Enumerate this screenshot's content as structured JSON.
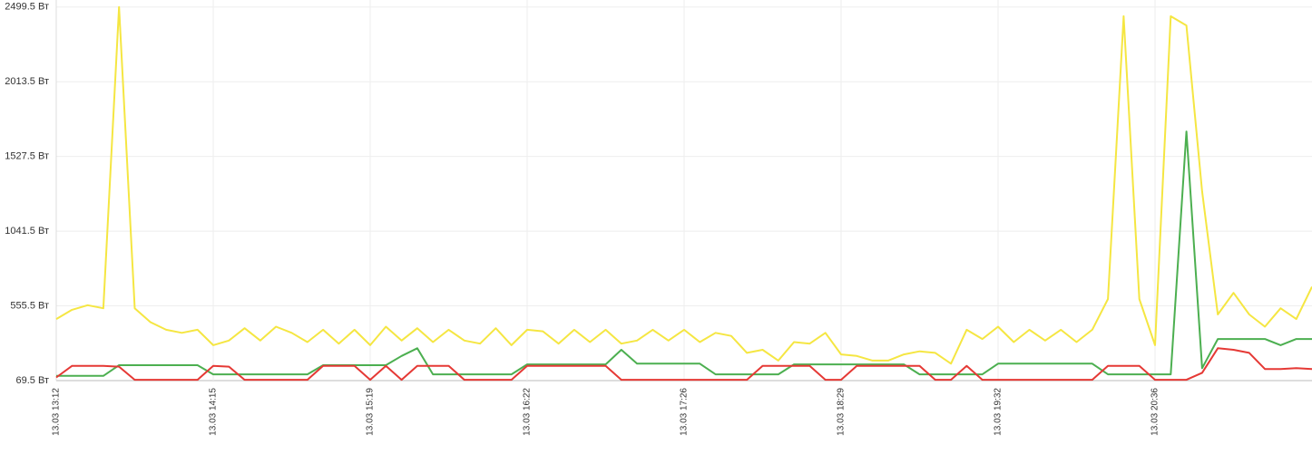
{
  "chart_data": {
    "type": "line",
    "categories": [
      "13.03 13:12",
      null,
      null,
      null,
      null,
      null,
      null,
      null,
      null,
      null,
      "13.03 14:15",
      null,
      null,
      null,
      null,
      null,
      null,
      null,
      null,
      null,
      "13.03 15:19",
      null,
      null,
      null,
      null,
      null,
      null,
      null,
      null,
      null,
      "13.03 16:22",
      null,
      null,
      null,
      null,
      null,
      null,
      null,
      null,
      null,
      "13.03 17:26",
      null,
      null,
      null,
      null,
      null,
      null,
      null,
      null,
      null,
      "13.03 18:29",
      null,
      null,
      null,
      null,
      null,
      null,
      null,
      null,
      null,
      "13.03 19:32",
      null,
      null,
      null,
      null,
      null,
      null,
      null,
      null,
      null,
      "13.03 20:36",
      null,
      null,
      null,
      null,
      null,
      null,
      null,
      null,
      null,
      null
    ],
    "series": [
      {
        "color": "#f5e642",
        "values": [
          470,
          530,
          560,
          540,
          2500,
          540,
          450,
          400,
          380,
          400,
          300,
          330,
          410,
          330,
          420,
          380,
          320,
          400,
          310,
          400,
          300,
          420,
          330,
          410,
          320,
          400,
          330,
          310,
          410,
          300,
          400,
          390,
          310,
          400,
          320,
          400,
          310,
          330,
          400,
          330,
          400,
          320,
          380,
          360,
          250,
          270,
          200,
          320,
          310,
          380,
          240,
          230,
          200,
          200,
          240,
          260,
          250,
          180,
          400,
          340,
          420,
          320,
          400,
          330,
          400,
          320,
          400,
          600,
          2440,
          600,
          300,
          2440,
          2380,
          1300,
          500,
          640,
          500,
          420,
          540,
          470,
          680
        ]
      },
      {
        "color": "#4caf50",
        "values": [
          100,
          100,
          100,
          100,
          170,
          170,
          170,
          170,
          170,
          170,
          110,
          110,
          110,
          110,
          110,
          110,
          110,
          170,
          170,
          170,
          170,
          170,
          230,
          280,
          110,
          110,
          110,
          110,
          110,
          110,
          175,
          175,
          175,
          175,
          175,
          175,
          270,
          180,
          180,
          180,
          180,
          180,
          110,
          110,
          110,
          110,
          110,
          175,
          175,
          175,
          175,
          175,
          175,
          175,
          175,
          110,
          110,
          110,
          110,
          110,
          180,
          180,
          180,
          180,
          180,
          180,
          180,
          110,
          110,
          110,
          110,
          110,
          1690,
          150,
          340,
          340,
          340,
          340,
          300,
          340,
          340
        ]
      },
      {
        "color": "#e53935",
        "values": [
          90,
          165,
          165,
          165,
          160,
          75,
          75,
          75,
          75,
          75,
          165,
          160,
          75,
          75,
          75,
          75,
          75,
          165,
          165,
          165,
          75,
          165,
          75,
          165,
          165,
          165,
          75,
          75,
          75,
          75,
          165,
          165,
          165,
          165,
          165,
          165,
          75,
          75,
          75,
          75,
          75,
          75,
          75,
          75,
          75,
          165,
          165,
          165,
          165,
          75,
          75,
          165,
          165,
          165,
          165,
          165,
          75,
          75,
          165,
          75,
          75,
          75,
          75,
          75,
          75,
          75,
          75,
          165,
          165,
          165,
          75,
          75,
          75,
          120,
          280,
          270,
          250,
          145,
          145,
          150,
          145
        ]
      }
    ],
    "ylim": [
      69.5,
      2545.5
    ],
    "yticks": [
      {
        "value": 69.5,
        "label": "69.5 Вт"
      },
      {
        "value": 555.5,
        "label": "555.5 Вт"
      },
      {
        "value": 1041.5,
        "label": "1041.5 Вт"
      },
      {
        "value": 1527.5,
        "label": "1527.5 Вт"
      },
      {
        "value": 2013.5,
        "label": "2013.5 Вт"
      },
      {
        "value": 2499.5,
        "label": "2499.5 Вт"
      }
    ],
    "grid": true
  }
}
